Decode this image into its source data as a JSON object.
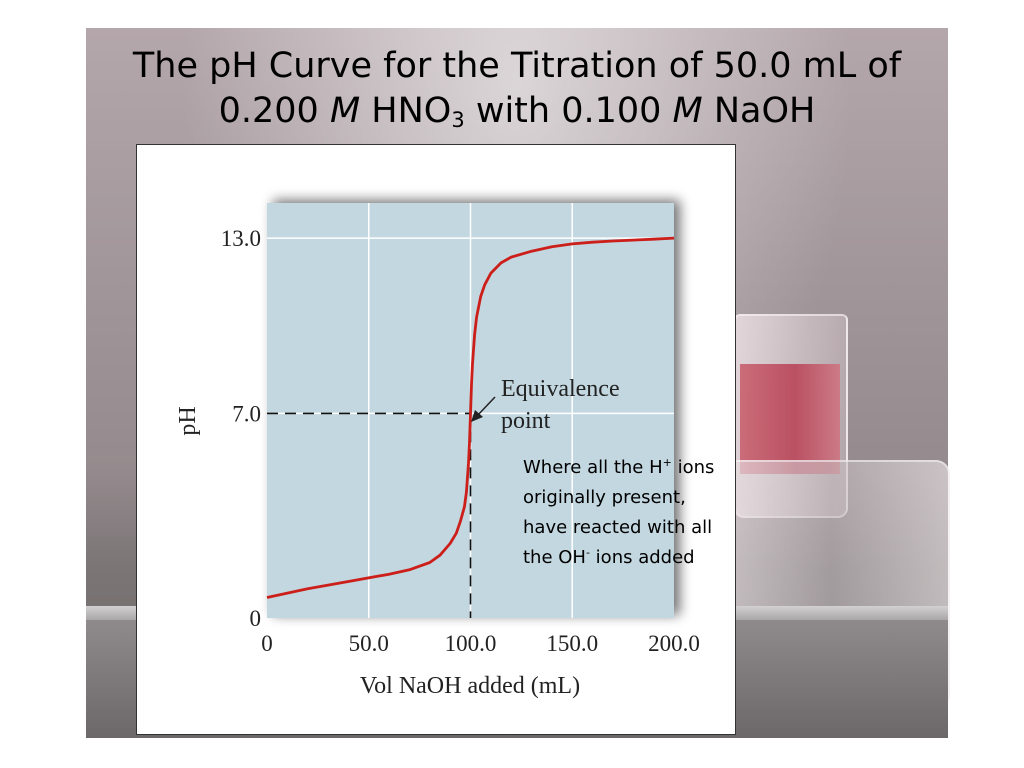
{
  "slide": {
    "title": {
      "line1": "The pH Curve for the Titration of 50.0 mL of",
      "line2_conc1": "0.200 ",
      "line2_m1": "M",
      "line2_acid": " HNO",
      "line2_acid_sub": "3",
      "line2_mid": " with 0.100 ",
      "line2_m2": "M",
      "line2_base": " NaOH"
    },
    "note": {
      "part1": "Where all the H",
      "sup1": "+",
      "part2": " ions originally present, have reacted with all the OH",
      "sup2": "-",
      "part3": " ions added"
    }
  },
  "chart_data": {
    "type": "line",
    "title": "",
    "xlabel": "Vol NaOH added (mL)",
    "ylabel": "pH",
    "xlim": [
      0,
      200
    ],
    "ylim": [
      0,
      14.2
    ],
    "x_ticks": [
      {
        "value": 0,
        "label": "0"
      },
      {
        "value": 50,
        "label": "50.0"
      },
      {
        "value": 100,
        "label": "100.0"
      },
      {
        "value": 150,
        "label": "150.0"
      },
      {
        "value": 200,
        "label": "200.0"
      }
    ],
    "y_ticks": [
      {
        "value": 0,
        "label": "0"
      },
      {
        "value": 7,
        "label": "7.0"
      },
      {
        "value": 13,
        "label": "13.0"
      }
    ],
    "grid": true,
    "plot_bg": "#c3d7e0",
    "line_color": "#cc1f1a",
    "series": [
      {
        "name": "",
        "x": [
          0,
          20,
          40,
          60,
          70,
          80,
          85,
          90,
          93,
          95,
          97,
          98,
          99,
          99.5,
          100,
          100.5,
          101,
          102,
          103,
          105,
          107,
          110,
          115,
          120,
          130,
          140,
          150,
          160,
          170,
          180,
          190,
          200
        ],
        "y": [
          0.7,
          1.0,
          1.25,
          1.5,
          1.65,
          1.9,
          2.15,
          2.55,
          2.9,
          3.3,
          3.8,
          4.3,
          5.3,
          6.0,
          7.0,
          8.0,
          8.7,
          9.7,
          10.3,
          11.0,
          11.4,
          11.8,
          12.15,
          12.35,
          12.55,
          12.7,
          12.8,
          12.86,
          12.9,
          12.93,
          12.96,
          13.0
        ]
      }
    ],
    "annotations": [
      {
        "text_line1": "Equivalence",
        "text_line2": "point",
        "x": 100,
        "y": 7.0
      }
    ],
    "reference_lines": [
      {
        "axis": "y",
        "value": 7.0,
        "style": "dashed"
      },
      {
        "axis": "x",
        "value": 100,
        "style": "dashed"
      }
    ]
  }
}
